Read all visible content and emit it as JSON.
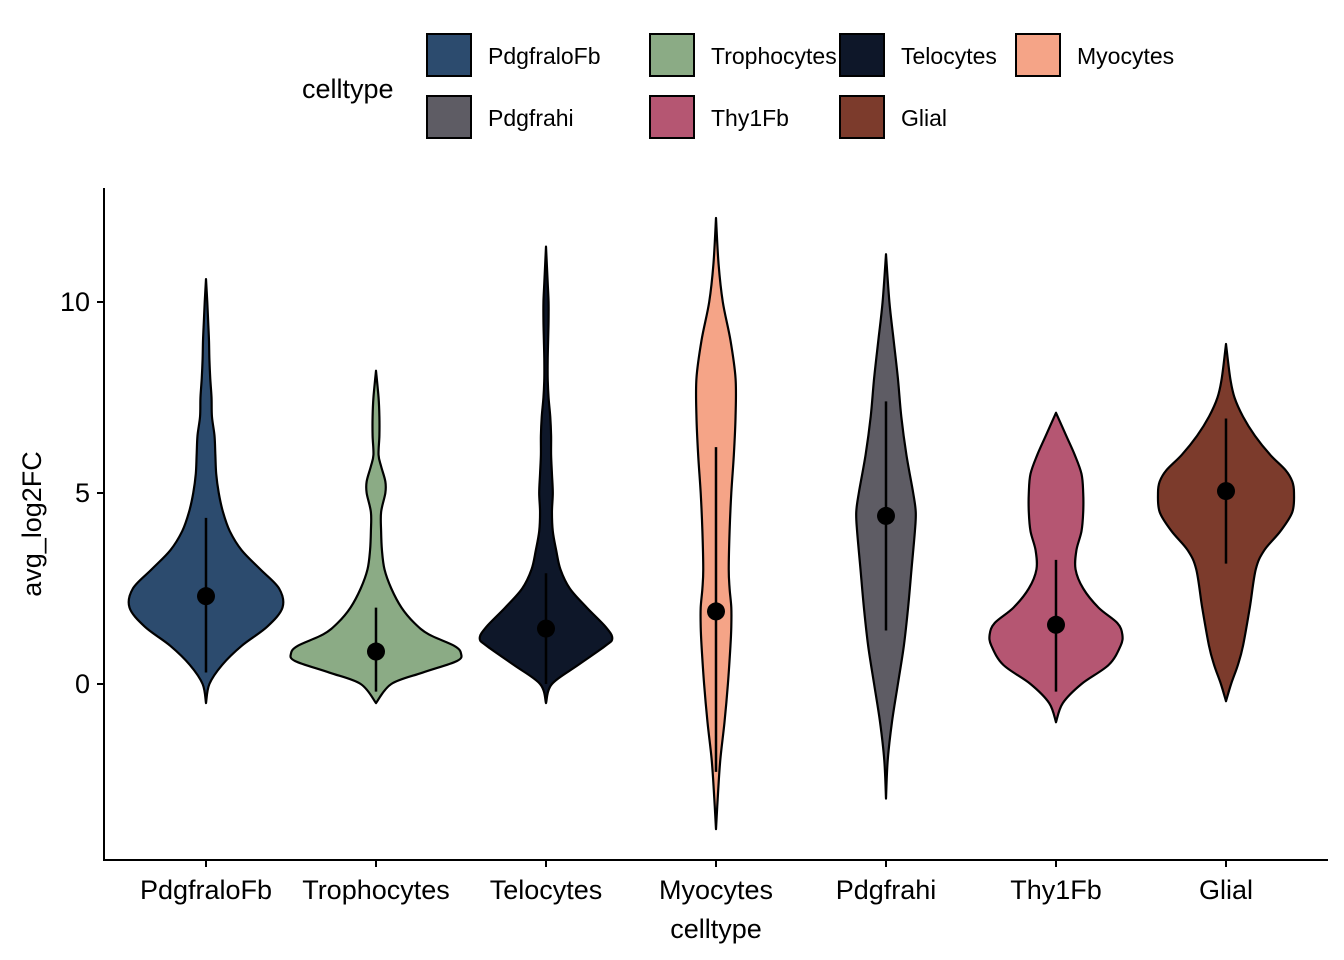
{
  "chart_data": {
    "type": "violin",
    "xlabel": "celltype",
    "ylabel": "avg_log2FC",
    "ylim": [
      -4.6,
      13
    ],
    "yticks": [
      0,
      5,
      10
    ],
    "legend": {
      "title": "celltype",
      "placement": "top"
    },
    "categories": [
      "PdgfraloFb",
      "Trophocytes",
      "Telocytes",
      "Myocytes",
      "Pdgfrahi",
      "Thy1Fb",
      "Glial"
    ],
    "colors": [
      "#2C4B6E",
      "#8BAB85",
      "#0E1729",
      "#F5A487",
      "#5E5C64",
      "#B55672",
      "#7C3B2C"
    ],
    "summary": [
      {
        "mean": 2.3,
        "lower": 0.3,
        "upper": 4.35
      },
      {
        "mean": 0.85,
        "lower": -0.2,
        "upper": 2.0
      },
      {
        "mean": 1.45,
        "lower": 0.0,
        "upper": 2.9
      },
      {
        "mean": 1.9,
        "lower": -2.3,
        "upper": 6.2
      },
      {
        "mean": 4.4,
        "lower": 1.4,
        "upper": 7.4
      },
      {
        "mean": 1.55,
        "lower": -0.2,
        "upper": 3.25
      },
      {
        "mean": 5.05,
        "lower": 3.15,
        "upper": 6.95
      }
    ],
    "density_profiles": [
      {
        "y": [
          -0.5,
          0,
          0.5,
          1,
          1.5,
          2,
          2.5,
          3,
          3.5,
          4,
          4.5,
          5,
          5.5,
          6,
          6.5,
          7,
          7.5,
          8,
          8.5,
          9,
          9.5,
          10,
          10.6
        ],
        "w": [
          0,
          0.04,
          0.19,
          0.42,
          0.72,
          0.9,
          0.86,
          0.64,
          0.42,
          0.28,
          0.2,
          0.15,
          0.12,
          0.11,
          0.1,
          0.07,
          0.065,
          0.05,
          0.04,
          0.035,
          0.025,
          0.015,
          0
        ]
      },
      {
        "y": [
          -0.5,
          0,
          0.3,
          0.6,
          0.8,
          1,
          1.3,
          1.6,
          2,
          2.5,
          3,
          3.5,
          4,
          4.5,
          5,
          5.3,
          5.7,
          6,
          6.5,
          7,
          7.5,
          8.2
        ],
        "w": [
          0,
          0.18,
          0.55,
          0.95,
          1.0,
          0.92,
          0.62,
          0.45,
          0.3,
          0.18,
          0.1,
          0.07,
          0.06,
          0.06,
          0.11,
          0.11,
          0.06,
          0.03,
          0.04,
          0.04,
          0.03,
          0
        ]
      },
      {
        "y": [
          -0.5,
          0,
          0.5,
          1,
          1.2,
          1.5,
          2,
          2.5,
          3,
          3.5,
          4,
          4.5,
          5,
          5.5,
          6,
          6.5,
          7,
          7.5,
          8,
          8.5,
          9,
          9.5,
          10,
          10.5,
          11.45
        ],
        "w": [
          0,
          0.07,
          0.38,
          0.7,
          0.78,
          0.7,
          0.48,
          0.28,
          0.17,
          0.12,
          0.08,
          0.07,
          0.08,
          0.07,
          0.06,
          0.06,
          0.05,
          0.03,
          0.02,
          0.02,
          0.025,
          0.03,
          0.03,
          0.02,
          0
        ]
      },
      {
        "y": [
          -3.8,
          -3,
          -2,
          -1,
          0,
          1,
          1.5,
          2,
          2.5,
          3,
          4,
          5,
          6,
          7,
          8,
          9,
          10,
          11,
          12.2
        ],
        "w": [
          0,
          0.02,
          0.05,
          0.1,
          0.14,
          0.17,
          0.18,
          0.18,
          0.16,
          0.15,
          0.16,
          0.18,
          0.21,
          0.23,
          0.23,
          0.17,
          0.08,
          0.03,
          0
        ]
      },
      {
        "y": [
          -3,
          -2,
          -1,
          0,
          1,
          2,
          3,
          4,
          4.5,
          5,
          6,
          7,
          8,
          9,
          10,
          11.25
        ],
        "w": [
          0,
          0.02,
          0.07,
          0.14,
          0.21,
          0.26,
          0.3,
          0.34,
          0.35,
          0.32,
          0.24,
          0.18,
          0.14,
          0.09,
          0.04,
          0
        ]
      },
      {
        "y": [
          -1,
          -0.5,
          0,
          0.5,
          1,
          1.3,
          1.6,
          2,
          2.5,
          3,
          3.5,
          4,
          4.5,
          5,
          5.5,
          6,
          6.5,
          7.1
        ],
        "w": [
          0,
          0.08,
          0.3,
          0.62,
          0.76,
          0.78,
          0.72,
          0.5,
          0.32,
          0.23,
          0.24,
          0.3,
          0.32,
          0.32,
          0.3,
          0.22,
          0.12,
          0
        ]
      },
      {
        "y": [
          -0.45,
          0,
          0.5,
          1,
          2,
          3,
          3.5,
          4,
          4.5,
          5,
          5.3,
          5.6,
          6,
          6.5,
          7,
          7.5,
          8,
          8.9
        ],
        "w": [
          0,
          0.06,
          0.14,
          0.2,
          0.28,
          0.35,
          0.45,
          0.64,
          0.78,
          0.8,
          0.78,
          0.7,
          0.52,
          0.34,
          0.2,
          0.1,
          0.05,
          0
        ]
      }
    ]
  }
}
